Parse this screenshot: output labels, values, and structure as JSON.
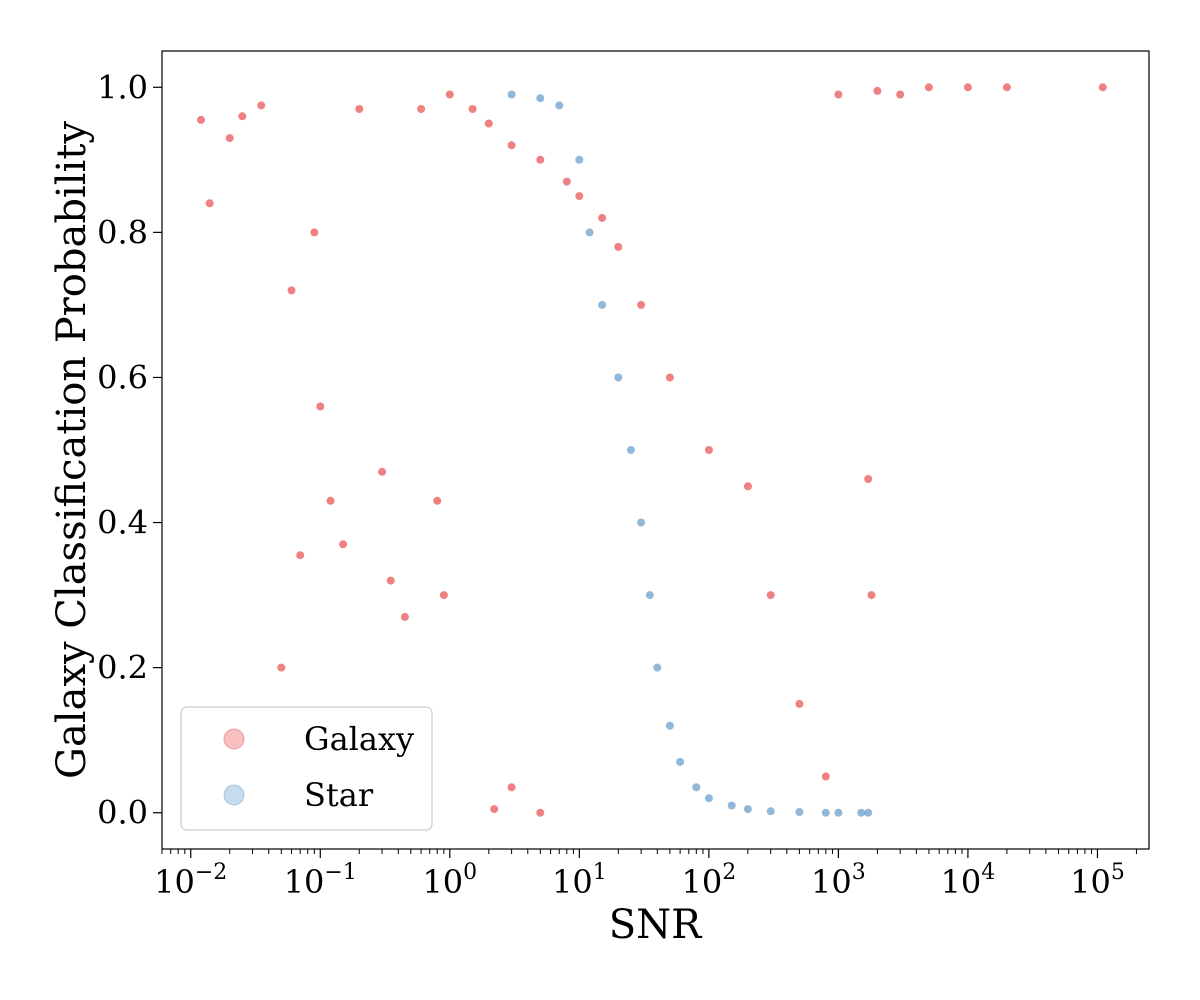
{
  "chart_data": {
    "type": "scatter",
    "title": "",
    "xlabel": "SNR",
    "ylabel": "Galaxy Classification Probability",
    "xscale": "log",
    "xlim": [
      0.006,
      250000
    ],
    "ylim": [
      -0.05,
      1.05
    ],
    "x_ticks": [
      {
        "value": 0.01,
        "base": "10",
        "exp": "−2"
      },
      {
        "value": 0.1,
        "base": "10",
        "exp": "−1"
      },
      {
        "value": 1,
        "base": "10",
        "exp": "0"
      },
      {
        "value": 10,
        "base": "10",
        "exp": "1"
      },
      {
        "value": 100,
        "base": "10",
        "exp": "2"
      },
      {
        "value": 1000,
        "base": "10",
        "exp": "3"
      },
      {
        "value": 10000,
        "base": "10",
        "exp": "4"
      },
      {
        "value": 100000,
        "base": "10",
        "exp": "5"
      }
    ],
    "y_ticks": [
      {
        "value": 0.0,
        "label": "0.0"
      },
      {
        "value": 0.2,
        "label": "0.2"
      },
      {
        "value": 0.4,
        "label": "0.4"
      },
      {
        "value": 0.6,
        "label": "0.6"
      },
      {
        "value": 0.8,
        "label": "0.8"
      },
      {
        "value": 1.0,
        "label": "1.0"
      }
    ],
    "grid": false,
    "legend_position": "bottom-left",
    "series": [
      {
        "name": "Galaxy",
        "color": "#e41a1c",
        "points": [
          [
            0.012,
            0.955
          ],
          [
            0.014,
            0.84
          ],
          [
            0.02,
            0.93
          ],
          [
            0.025,
            0.96
          ],
          [
            0.035,
            0.975
          ],
          [
            0.05,
            0.2
          ],
          [
            0.06,
            0.72
          ],
          [
            0.07,
            0.355
          ],
          [
            0.09,
            0.8
          ],
          [
            0.1,
            0.56
          ],
          [
            0.12,
            0.43
          ],
          [
            0.15,
            0.37
          ],
          [
            0.2,
            0.97
          ],
          [
            0.3,
            0.47
          ],
          [
            0.35,
            0.32
          ],
          [
            0.45,
            0.27
          ],
          [
            0.6,
            0.97
          ],
          [
            0.8,
            0.43
          ],
          [
            0.9,
            0.3
          ],
          [
            1.0,
            0.99
          ],
          [
            2.2,
            0.005
          ],
          [
            3.0,
            0.035
          ],
          [
            5.0,
            0.0
          ],
          [
            1.5,
            0.97
          ],
          [
            2,
            0.95
          ],
          [
            3,
            0.92
          ],
          [
            5,
            0.9
          ],
          [
            8,
            0.87
          ],
          [
            10,
            0.85
          ],
          [
            15,
            0.82
          ],
          [
            20,
            0.78
          ],
          [
            30,
            0.7
          ],
          [
            50,
            0.6
          ],
          [
            100,
            0.5
          ],
          [
            200,
            0.45
          ],
          [
            300,
            0.3
          ],
          [
            500,
            0.15
          ],
          [
            800,
            0.05
          ],
          [
            1000,
            0.99
          ],
          [
            2000,
            0.995
          ],
          [
            3000,
            0.99
          ],
          [
            5000,
            1.0
          ],
          [
            10000,
            1.0
          ],
          [
            20000,
            1.0
          ],
          [
            110000,
            1.0
          ],
          [
            1800,
            0.3
          ],
          [
            1700,
            0.46
          ]
        ]
      },
      {
        "name": "Star",
        "color": "#377eb8",
        "points": [
          [
            3,
            0.99
          ],
          [
            5,
            0.985
          ],
          [
            7,
            0.975
          ],
          [
            10,
            0.9
          ],
          [
            12,
            0.8
          ],
          [
            15,
            0.7
          ],
          [
            20,
            0.6
          ],
          [
            25,
            0.5
          ],
          [
            30,
            0.4
          ],
          [
            35,
            0.3
          ],
          [
            40,
            0.2
          ],
          [
            50,
            0.12
          ],
          [
            60,
            0.07
          ],
          [
            80,
            0.035
          ],
          [
            100,
            0.02
          ],
          [
            150,
            0.01
          ],
          [
            200,
            0.005
          ],
          [
            300,
            0.002
          ],
          [
            500,
            0.001
          ],
          [
            800,
            0.0
          ],
          [
            1000,
            0.0
          ],
          [
            1500,
            0.0
          ],
          [
            1700,
            0.0
          ]
        ]
      }
    ]
  }
}
